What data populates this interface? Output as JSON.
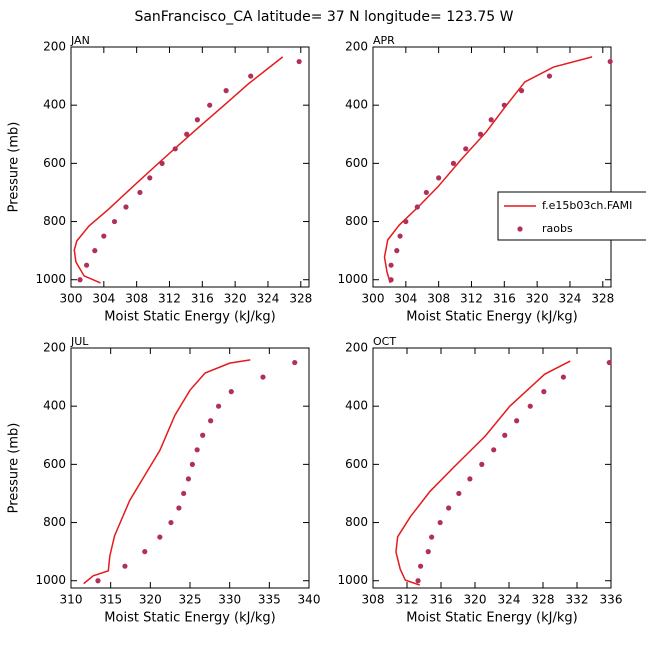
{
  "title": "SanFrancisco_CA  latitude= 37 N longitude= 123.75 W",
  "chart_data": [
    {
      "type": "line",
      "panel_title": "JAN",
      "x_label": "Moist Static Energy (kJ/kg)",
      "y_label": "Pressure (mb)",
      "xlim": [
        300,
        329
      ],
      "xticks": [
        300,
        304,
        308,
        312,
        316,
        320,
        324,
        328
      ],
      "ylim": [
        1025,
        200
      ],
      "yticks": [
        200,
        400,
        600,
        800,
        1000
      ],
      "series": [
        {
          "name": "f.e15b03ch.FAMI",
          "color": "#e41a1c",
          "style": "line",
          "x": [
            303.6,
            301.6,
            300.6,
            300.4,
            300.7,
            302.2,
            304.6,
            307.5,
            311.1,
            315.2,
            318.7,
            321.6,
            325.8
          ],
          "values": [
            1011,
            987,
            939,
            898,
            867,
            815,
            757,
            681,
            588,
            485,
            399,
            327,
            234
          ]
        },
        {
          "name": "raobs",
          "color": "#b0305a",
          "style": "markers",
          "x": [
            301.1,
            301.9,
            302.9,
            304.0,
            305.3,
            306.7,
            308.4,
            309.6,
            311.1,
            312.7,
            314.1,
            315.4,
            316.9,
            318.9,
            321.9,
            327.8
          ],
          "values": [
            1000,
            950,
            900,
            850,
            800,
            750,
            700,
            650,
            600,
            550,
            500,
            450,
            400,
            350,
            300,
            250
          ]
        }
      ]
    },
    {
      "type": "line",
      "panel_title": "APR",
      "x_label": "Moist Static Energy (kJ/kg)",
      "legend": "right",
      "xlim": [
        300,
        329
      ],
      "xticks": [
        300,
        304,
        308,
        312,
        316,
        320,
        324,
        328
      ],
      "ylim": [
        1025,
        200
      ],
      "yticks": [
        200,
        400,
        600,
        800,
        1000
      ],
      "series": [
        {
          "name": "f.e15b03ch.FAMI",
          "color": "#e41a1c",
          "style": "line",
          "x": [
            302.1,
            301.7,
            301.4,
            301.8,
            303.2,
            305.5,
            307.9,
            310.8,
            313.8,
            316.1,
            318.5,
            322.0,
            326.7
          ],
          "values": [
            1011,
            973,
            922,
            863,
            812,
            750,
            681,
            585,
            492,
            406,
            320,
            269,
            234
          ]
        },
        {
          "name": "raobs",
          "color": "#b0305a",
          "style": "markers",
          "x": [
            302.2,
            302.2,
            302.9,
            303.3,
            304.0,
            305.4,
            306.5,
            308.0,
            309.8,
            311.3,
            313.1,
            314.4,
            316.0,
            318.1,
            321.5,
            328.9
          ],
          "values": [
            1000,
            950,
            900,
            850,
            800,
            750,
            700,
            650,
            600,
            550,
            500,
            450,
            400,
            350,
            300,
            250
          ]
        }
      ]
    },
    {
      "type": "line",
      "panel_title": "JUL",
      "x_label": "Moist Static Energy (kJ/kg)",
      "y_label": "Pressure (mb)",
      "xlim": [
        310,
        340
      ],
      "xticks": [
        310,
        315,
        320,
        325,
        330,
        335,
        340
      ],
      "ylim": [
        1025,
        200
      ],
      "yticks": [
        200,
        400,
        600,
        800,
        1000
      ],
      "series": [
        {
          "name": "f.e15b03ch.FAMI",
          "color": "#e41a1c",
          "style": "line",
          "x": [
            311.6,
            312.8,
            314.7,
            314.9,
            315.5,
            317.4,
            319.3,
            321.2,
            323.1,
            325.0,
            326.9,
            330.0,
            332.6
          ],
          "values": [
            1010,
            983,
            966,
            914,
            845,
            724,
            638,
            552,
            431,
            345,
            286,
            252,
            241
          ]
        },
        {
          "name": "raobs",
          "color": "#b0305a",
          "style": "markers",
          "x": [
            313.4,
            316.8,
            319.3,
            321.2,
            322.6,
            323.6,
            324.2,
            324.8,
            325.3,
            325.9,
            326.6,
            327.6,
            328.6,
            330.2,
            334.2,
            338.2
          ],
          "values": [
            1000,
            950,
            900,
            850,
            800,
            750,
            700,
            650,
            600,
            550,
            500,
            450,
            400,
            350,
            300,
            250
          ]
        }
      ]
    },
    {
      "type": "line",
      "panel_title": "OCT",
      "x_label": "Moist Static Energy (kJ/kg)",
      "xlim": [
        308,
        336
      ],
      "xticks": [
        308,
        312,
        316,
        320,
        324,
        328,
        332,
        336
      ],
      "ylim": [
        1025,
        200
      ],
      "yticks": [
        200,
        400,
        600,
        800,
        1000
      ],
      "series": [
        {
          "name": "f.e15b03ch.FAMI",
          "color": "#e41a1c",
          "style": "line",
          "x": [
            313.5,
            311.8,
            311.2,
            310.7,
            310.9,
            312.4,
            314.7,
            317.6,
            321.2,
            324.1,
            328.2,
            331.2
          ],
          "values": [
            1015,
            998,
            960,
            901,
            849,
            780,
            693,
            607,
            503,
            400,
            290,
            245
          ]
        },
        {
          "name": "raobs",
          "color": "#b0305a",
          "style": "markers",
          "x": [
            313.3,
            313.6,
            314.5,
            314.9,
            315.9,
            316.9,
            318.1,
            319.4,
            320.8,
            322.2,
            323.5,
            324.9,
            326.5,
            328.1,
            330.4,
            335.8
          ],
          "values": [
            1000,
            950,
            900,
            850,
            800,
            750,
            700,
            650,
            600,
            550,
            500,
            450,
            400,
            350,
            300,
            250
          ]
        }
      ]
    }
  ]
}
